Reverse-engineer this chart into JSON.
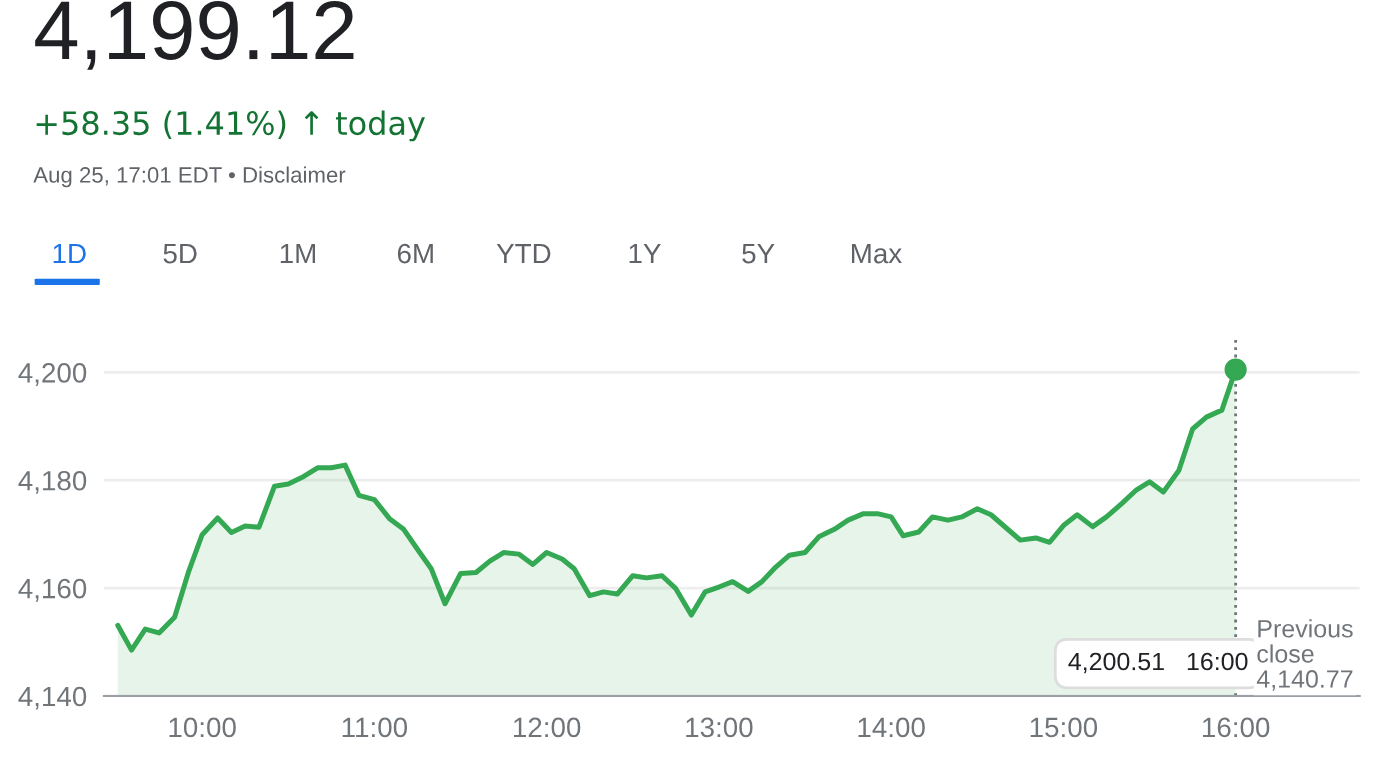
{
  "chart_data": {
    "type": "area",
    "title": "4,199.12",
    "subtitle": "+58.35 (1.41%) ↑ today",
    "annotations": [
      "Aug 25, 17:01 EDT • Disclaimer",
      "1D",
      "5D",
      "1M",
      "6M",
      "YTD",
      "1Y",
      "5Y",
      "Max",
      "4,200.51   16:00",
      "Previous\nclose\n4,140.77"
    ],
    "series": [
      {
        "color": "#34a853",
        "x": [
          9.51,
          9.59,
          9.67,
          9.75,
          9.84,
          9.92,
          10.0,
          10.09,
          10.17,
          10.25,
          10.33,
          10.42,
          10.5,
          10.59,
          10.67,
          10.75,
          10.83,
          10.91,
          11.0,
          11.09,
          11.17,
          11.25,
          11.33,
          11.41,
          11.5,
          11.59,
          11.67,
          11.75,
          11.84,
          11.92,
          12.0,
          12.09,
          12.16,
          12.25,
          12.33,
          12.41,
          12.5,
          12.58,
          12.67,
          12.75,
          12.84,
          12.92,
          13.0,
          13.08,
          13.17,
          13.25,
          13.33,
          13.41,
          13.5,
          13.58,
          13.67,
          13.75,
          13.84,
          13.92,
          14.0,
          14.07,
          14.16,
          14.24,
          14.33,
          14.41,
          14.5,
          14.58,
          14.67,
          14.75,
          14.84,
          14.92,
          15.0,
          15.08,
          15.17,
          15.25,
          15.34,
          15.42,
          15.5,
          15.58,
          15.67,
          15.75,
          15.83,
          15.92,
          16.0
        ],
        "values": [
          4153.1,
          4148.5,
          4152.4,
          4151.7,
          4154.6,
          4162.9,
          4169.9,
          4173.0,
          4170.3,
          4171.5,
          4171.3,
          4178.9,
          4179.3,
          4180.7,
          4182.3,
          4182.3,
          4182.8,
          4177.2,
          4176.4,
          4172.8,
          4170.9,
          4167.2,
          4163.6,
          4157.1,
          4162.7,
          4162.9,
          4165.0,
          4166.6,
          4166.3,
          4164.4,
          4166.6,
          4165.4,
          4163.6,
          4158.6,
          4159.3,
          4158.9,
          4162.3,
          4161.9,
          4162.3,
          4159.9,
          4155.0,
          4159.3,
          4160.2,
          4161.2,
          4159.4,
          4161.2,
          4163.9,
          4166.1,
          4166.6,
          4169.5,
          4170.9,
          4172.6,
          4173.8,
          4173.8,
          4173.2,
          4169.7,
          4170.4,
          4173.2,
          4172.6,
          4173.2,
          4174.7,
          4173.6,
          4171.1,
          4168.9,
          4169.3,
          4168.5,
          4171.6,
          4173.6,
          4171.4,
          4173.2,
          4175.7,
          4178.1,
          4179.7,
          4177.8,
          4181.8,
          4189.5,
          4191.7,
          4193.0,
          4200.51
        ]
      },
      {
        "type": "scatter",
        "color": "#34a853",
        "marker": "circle",
        "x": [
          16.0
        ],
        "values": [
          4200.51
        ]
      }
    ],
    "xlim": [
      9.43,
      16.72
    ],
    "xticks": [
      {
        "value": 10,
        "label": "10:00"
      },
      {
        "value": 11,
        "label": "11:00"
      },
      {
        "value": 12,
        "label": "12:00"
      },
      {
        "value": 13,
        "label": "13:00"
      },
      {
        "value": 14,
        "label": "14:00"
      },
      {
        "value": 15,
        "label": "15:00"
      },
      {
        "value": 16,
        "label": "16:00"
      }
    ],
    "ylim": [
      4140,
      4206
    ],
    "yticks": [
      {
        "value": 4140,
        "label": "4,140"
      },
      {
        "value": 4160,
        "label": "4,160"
      },
      {
        "value": 4180,
        "label": "4,180"
      },
      {
        "value": 4200,
        "label": "4,200"
      }
    ],
    "ref_lines": [
      {
        "axis": "x",
        "value": 16,
        "line_style": "dotted",
        "color": "#70757a"
      }
    ],
    "grid": "y",
    "legend": false
  }
}
